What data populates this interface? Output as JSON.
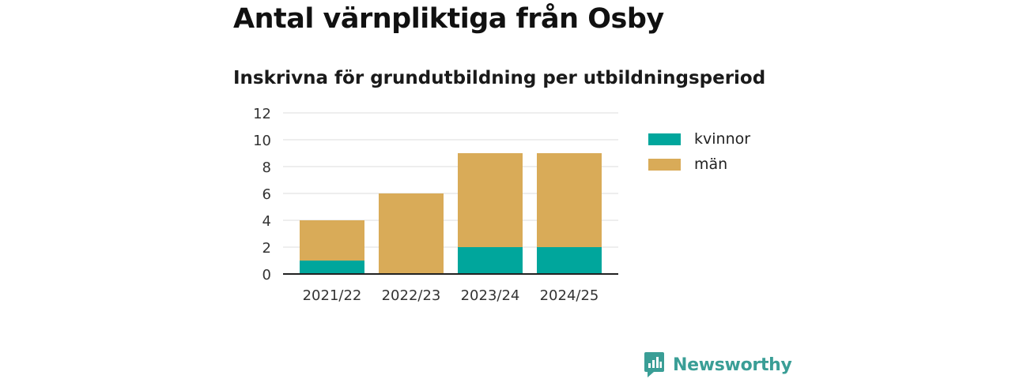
{
  "header": {
    "title": "Antal värnpliktiga från Osby",
    "subtitle": "Inskrivna för grundutbildning per utbildningsperiod"
  },
  "chart_data": {
    "type": "bar",
    "stacked": true,
    "title": "Antal värnpliktiga från Osby",
    "subtitle": "Inskrivna för grundutbildning per utbildningsperiod",
    "xlabel": "",
    "ylabel": "",
    "categories": [
      "2021/22",
      "2022/23",
      "2023/24",
      "2024/25"
    ],
    "series": [
      {
        "name": "kvinnor",
        "values": [
          1,
          0,
          2,
          2
        ],
        "color": "#00a69c"
      },
      {
        "name": "män",
        "values": [
          3,
          6,
          7,
          7
        ],
        "color": "#d9ab58"
      }
    ],
    "ylim": [
      0,
      12
    ],
    "yticks": [
      0,
      2,
      4,
      6,
      8,
      10,
      12
    ],
    "grid": true,
    "legend_position": "right"
  },
  "brand": {
    "name": "Newsworthy",
    "icon": "newsworthy-logo-icon",
    "color": "#3a9e96"
  }
}
